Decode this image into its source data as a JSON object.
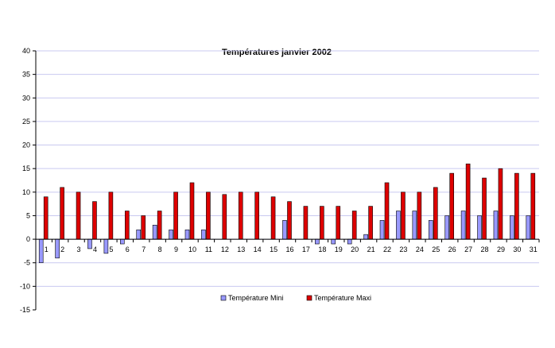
{
  "chart_data": {
    "type": "bar",
    "title": "Températures janvier 2002",
    "xlabel": "",
    "ylabel": "",
    "ylim": [
      -15,
      40
    ],
    "yticks": [
      -15,
      -10,
      -5,
      0,
      5,
      10,
      15,
      20,
      25,
      30,
      35,
      40
    ],
    "grid": true,
    "legend_position": "bottom",
    "categories": [
      "1",
      "2",
      "3",
      "4",
      "5",
      "6",
      "7",
      "8",
      "9",
      "10",
      "11",
      "12",
      "13",
      "14",
      "15",
      "16",
      "17",
      "18",
      "19",
      "20",
      "21",
      "22",
      "23",
      "24",
      "25",
      "26",
      "27",
      "28",
      "29",
      "30",
      "31"
    ],
    "series": [
      {
        "name": "Température Mini",
        "color": "#9999ff",
        "values": [
          -5,
          -4,
          0,
          -2,
          -3,
          -1,
          2,
          3,
          2,
          2,
          2,
          0,
          0,
          0,
          0,
          4,
          0,
          -1,
          -1,
          -1,
          1,
          4,
          6,
          6,
          4,
          5,
          6,
          5,
          6,
          5,
          5
        ]
      },
      {
        "name": "Température Maxi",
        "color": "#dd0000",
        "values": [
          9,
          11,
          10,
          8,
          10,
          6,
          5,
          6,
          10,
          12,
          10,
          9.5,
          10,
          10,
          9,
          8,
          7,
          7,
          7,
          6,
          7,
          12,
          10,
          10,
          11,
          14,
          16,
          13,
          15,
          14,
          14
        ]
      }
    ]
  }
}
